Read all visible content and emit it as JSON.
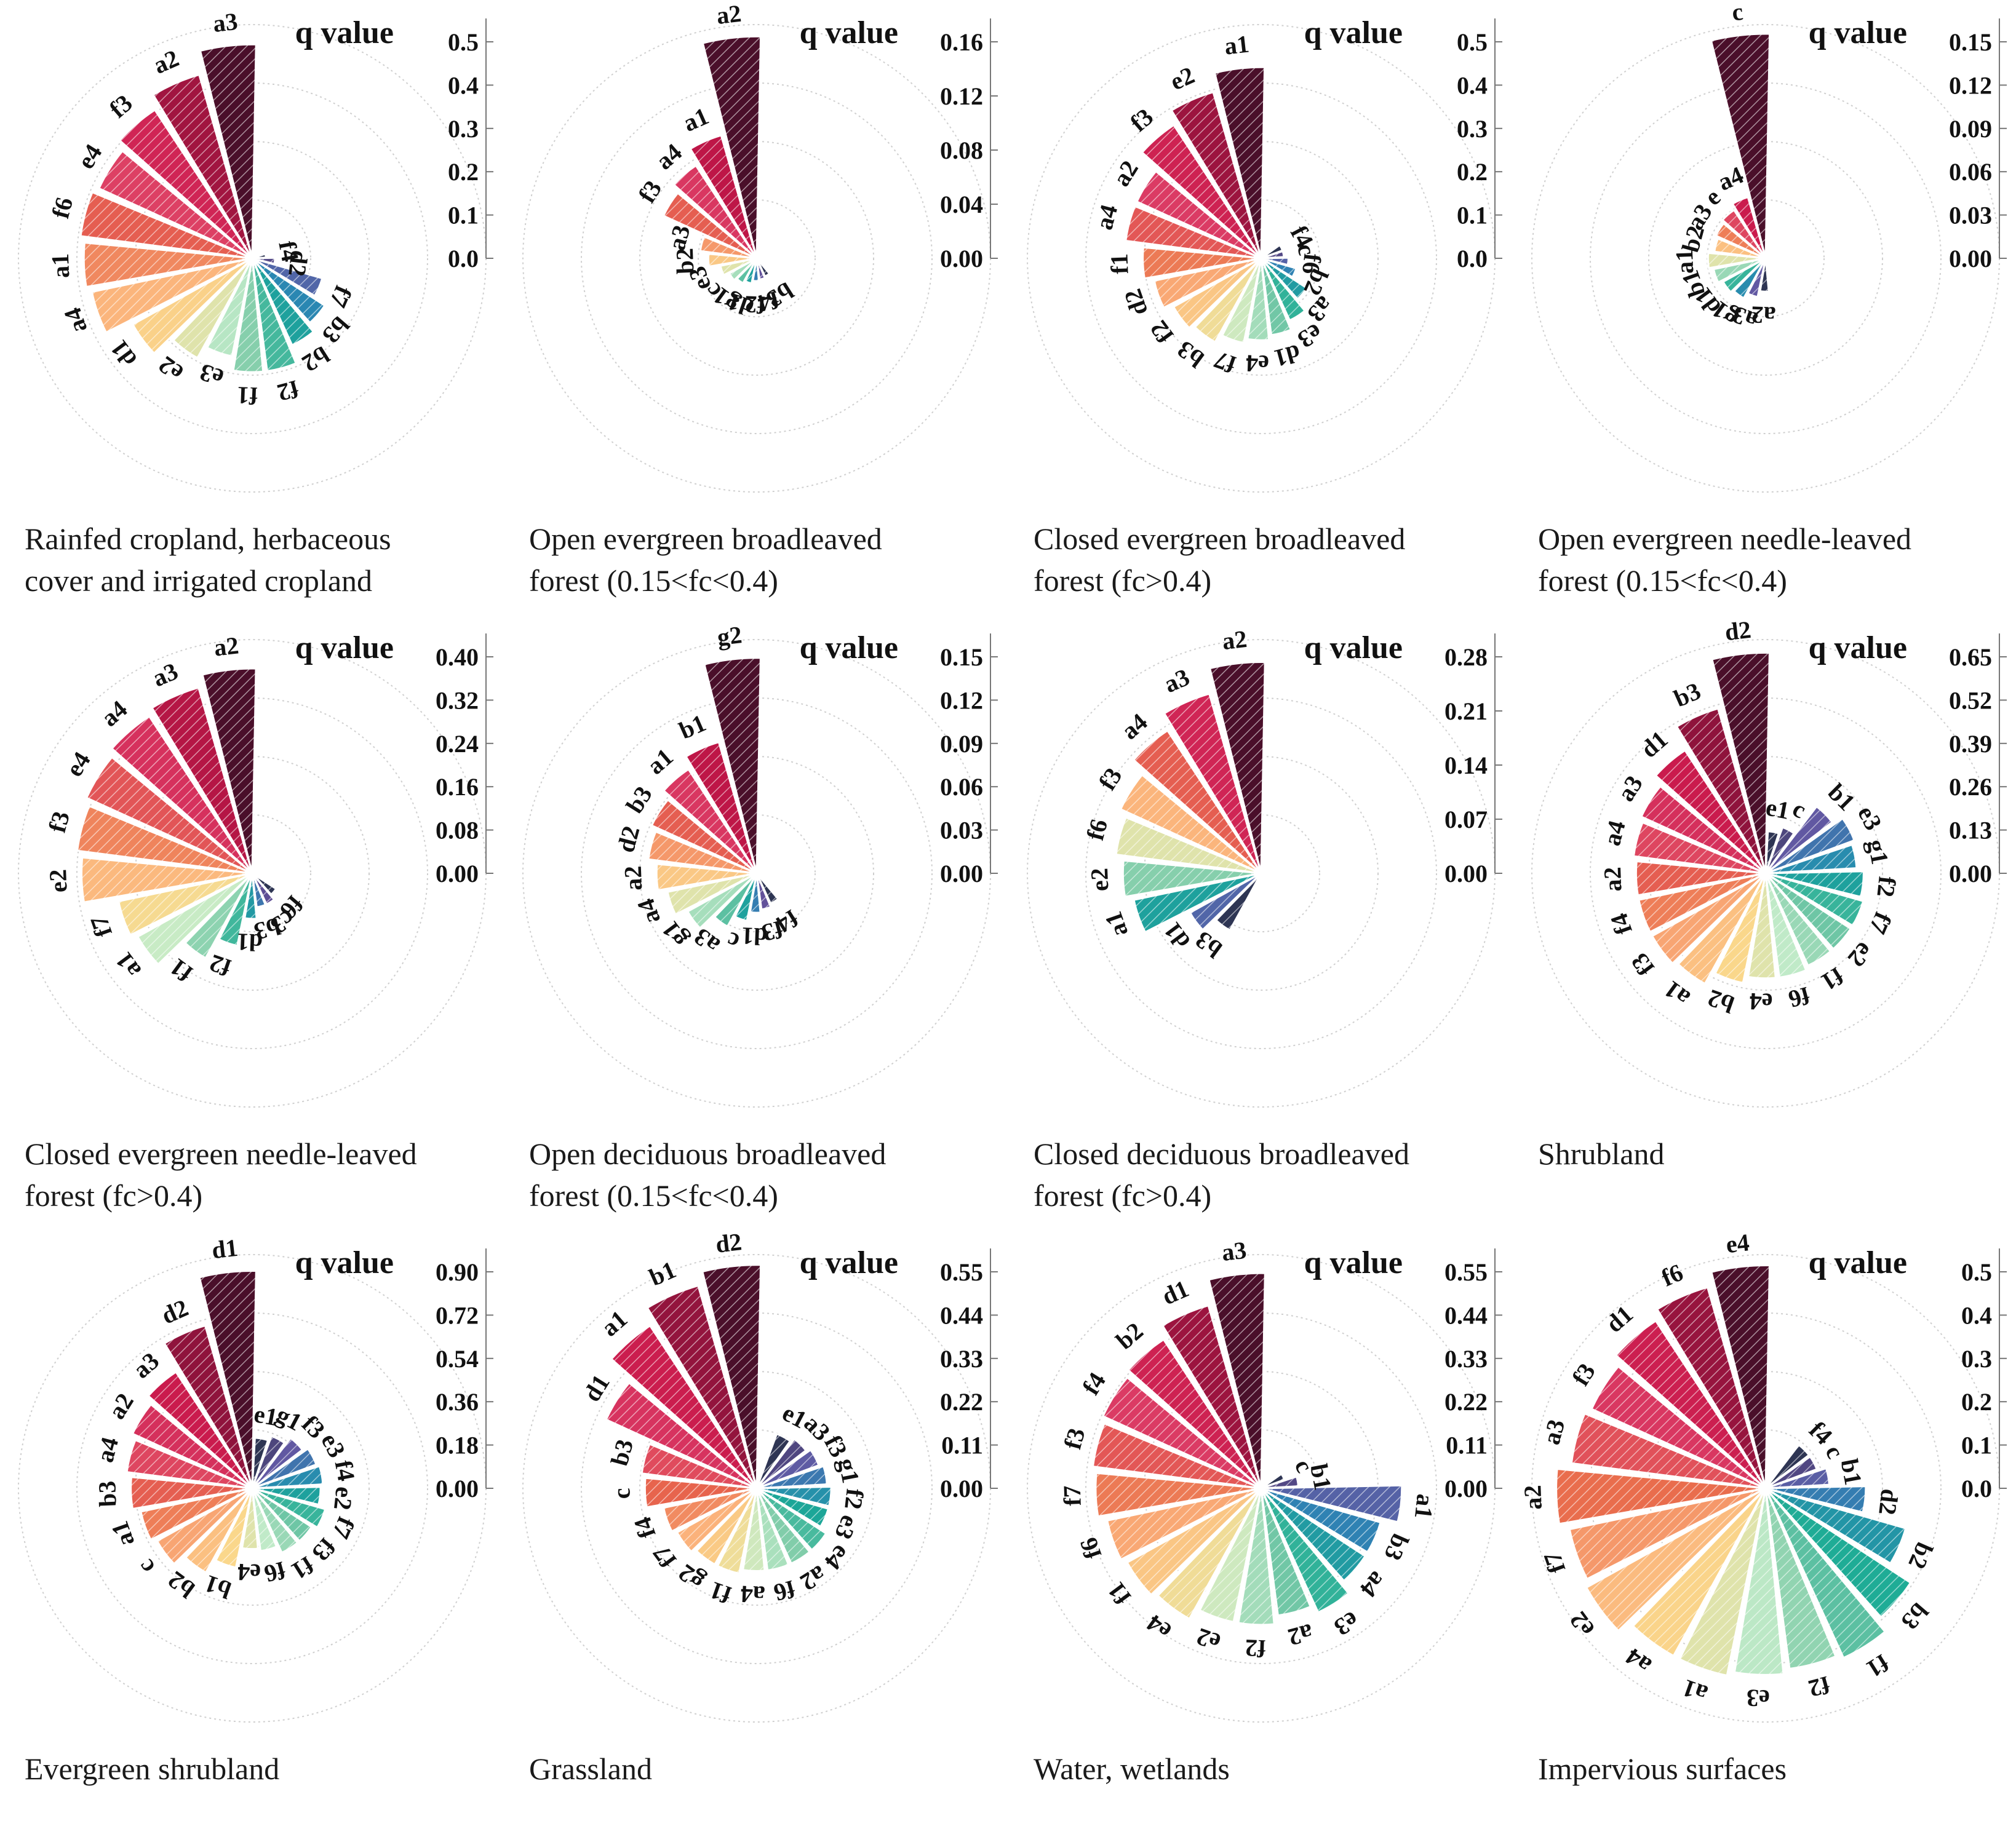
{
  "figure": {
    "axis_title": "q value",
    "palette": [
      "#4a0f2a",
      "#c8174a",
      "#dc3d66",
      "#e8694a",
      "#fbb07a",
      "#fad98c",
      "#c4ecca",
      "#7dcba8",
      "#1aaa95",
      "#2b85b4",
      "#6753a0",
      "#2e3553"
    ]
  },
  "chart_data": [
    {
      "type": "polar-bar",
      "title": "Rainfed cropland,    herbaceous\ncover and irrigated cropland",
      "yticks": [
        "0.0",
        "0.1",
        "0.2",
        "0.3",
        "0.4",
        "0.5"
      ],
      "rmax": 0.5,
      "categories": [
        "a3",
        "a2",
        "f3",
        "e4",
        "f6",
        "a1",
        "a4",
        "d1",
        "e2",
        "e3",
        "f1",
        "f2",
        "b2",
        "b3",
        "f7",
        "d2",
        "f4"
      ],
      "values": [
        0.47,
        0.42,
        0.39,
        0.37,
        0.38,
        0.37,
        0.36,
        0.3,
        0.25,
        0.22,
        0.25,
        0.25,
        0.21,
        0.19,
        0.16,
        0.05,
        0.03
      ]
    },
    {
      "type": "polar-bar",
      "title": "Open evergreen broadleaved\nforest (0.15<fc<0.4)",
      "yticks": [
        "0.00",
        "0.04",
        "0.08",
        "0.12",
        "0.16"
      ],
      "rmax": 0.16,
      "categories": [
        "a2",
        "a1",
        "a4",
        "f3",
        "a3",
        "b2",
        "e3",
        "c",
        "g1",
        "d1",
        "f2",
        "f4",
        "b3"
      ],
      "values": [
        0.156,
        0.09,
        0.078,
        0.072,
        0.04,
        0.034,
        0.026,
        0.022,
        0.02,
        0.018,
        0.016,
        0.015,
        0.014
      ]
    },
    {
      "type": "polar-bar",
      "title": "Closed evergreen broadleaved\nforest (fc>0.4)",
      "yticks": [
        "0.0",
        "0.1",
        "0.2",
        "0.3",
        "0.4",
        "0.5"
      ],
      "rmax": 0.5,
      "categories": [
        "a1",
        "e2",
        "f3",
        "a2",
        "a4",
        "f1",
        "d2",
        "f2",
        "b3",
        "f7",
        "e4",
        "d1",
        "e3",
        "a3",
        "b2",
        "f6",
        "c",
        "f4"
      ],
      "values": [
        0.42,
        0.38,
        0.35,
        0.3,
        0.3,
        0.26,
        0.24,
        0.22,
        0.21,
        0.19,
        0.18,
        0.17,
        0.15,
        0.12,
        0.08,
        0.06,
        0.05,
        0.05
      ]
    },
    {
      "type": "polar-bar",
      "title": "Open evergreen needle-leaved\nforest (0.15<fc<0.4)",
      "yticks": [
        "0.00",
        "0.03",
        "0.06",
        "0.09",
        "0.12",
        "0.15"
      ],
      "rmax": 0.15,
      "categories": [
        "c",
        "a4",
        "e",
        "a3",
        "b2",
        "a1",
        "b1",
        "d1",
        "g1",
        "a3",
        "a2"
      ],
      "values": [
        0.148,
        0.042,
        0.038,
        0.036,
        0.034,
        0.038,
        0.035,
        0.032,
        0.03,
        0.026,
        0.022
      ]
    },
    {
      "type": "polar-bar",
      "title": "Closed evergreen needle-leaved\nforest (fc>0.4)",
      "yticks": [
        "0.00",
        "0.08",
        "0.16",
        "0.24",
        "0.32",
        "0.40"
      ],
      "rmax": 0.4,
      "categories": [
        "a2",
        "a3",
        "a4",
        "e4",
        "f3",
        "e2",
        "f7",
        "a1",
        "f1",
        "f2",
        "d1",
        "b3",
        "c3",
        "f6"
      ],
      "values": [
        0.36,
        0.34,
        0.33,
        0.32,
        0.31,
        0.3,
        0.24,
        0.23,
        0.17,
        0.13,
        0.08,
        0.06,
        0.06,
        0.05
      ]
    },
    {
      "type": "polar-bar",
      "title": "Open deciduous broadleaved\nforest (0.15<fc<0.4)",
      "yticks": [
        "0.00",
        "0.03",
        "0.06",
        "0.09",
        "0.12",
        "0.15"
      ],
      "rmax": 0.15,
      "categories": [
        "g2",
        "b1",
        "a1",
        "b3",
        "d2",
        "a2",
        "a4",
        "g1",
        "a3",
        "c",
        "d1",
        "f3",
        "f4"
      ],
      "values": [
        0.142,
        0.09,
        0.082,
        0.076,
        0.072,
        0.066,
        0.06,
        0.052,
        0.04,
        0.032,
        0.026,
        0.024,
        0.022
      ]
    },
    {
      "type": "polar-bar",
      "title": "Closed deciduous broadleaved\nforest (fc>0.4)",
      "yticks": [
        "0.00",
        "0.07",
        "0.14",
        "0.21",
        "0.28"
      ],
      "rmax": 0.28,
      "categories": [
        "a2",
        "a3",
        "a4",
        "f3",
        "f6",
        "e2",
        "a1",
        "d1",
        "b3"
      ],
      "values": [
        0.26,
        0.23,
        0.21,
        0.19,
        0.18,
        0.17,
        0.16,
        0.1,
        0.08
      ]
    },
    {
      "type": "polar-bar",
      "title": "Shrubland",
      "yticks": [
        "0.00",
        "0.13",
        "0.26",
        "0.39",
        "0.52",
        "0.65"
      ],
      "rmax": 0.65,
      "categories": [
        "d2",
        "b3",
        "d1",
        "a3",
        "a4",
        "a2",
        "f4",
        "f3",
        "a1",
        "b2",
        "e4",
        "f6",
        "f1",
        "e2",
        "f7",
        "f2",
        "g1",
        "e3",
        "b1",
        "c",
        "e1"
      ],
      "values": [
        0.63,
        0.49,
        0.42,
        0.39,
        0.38,
        0.37,
        0.37,
        0.37,
        0.36,
        0.32,
        0.3,
        0.3,
        0.29,
        0.29,
        0.29,
        0.28,
        0.26,
        0.27,
        0.24,
        0.14,
        0.12
      ]
    },
    {
      "type": "polar-bar",
      "title": "Evergreen shrubland",
      "yticks": [
        "0.00",
        "0.18",
        "0.36",
        "0.54",
        "0.72",
        "0.90"
      ],
      "rmax": 0.9,
      "categories": [
        "d1",
        "d2",
        "a3",
        "a2",
        "a4",
        "b3",
        "a1",
        "c",
        "b2",
        "b1",
        "e4",
        "f6",
        "f1",
        "f3",
        "f7",
        "e2",
        "f4",
        "e3",
        "f3",
        "g1",
        "e1"
      ],
      "values": [
        0.86,
        0.67,
        0.55,
        0.52,
        0.5,
        0.48,
        0.45,
        0.43,
        0.38,
        0.32,
        0.24,
        0.25,
        0.28,
        0.28,
        0.3,
        0.27,
        0.28,
        0.27,
        0.25,
        0.22,
        0.2
      ]
    },
    {
      "type": "polar-bar",
      "title": "Grassland",
      "yticks": [
        "0.00",
        "0.11",
        "0.22",
        "0.33",
        "0.44",
        "0.55"
      ],
      "rmax": 0.55,
      "categories": [
        "d2",
        "b1",
        "a1",
        "d1",
        "b3",
        "c",
        "f4",
        "f7",
        "g2",
        "f1",
        "a4",
        "f6",
        "a2",
        "e4",
        "e3",
        "f2",
        "g1",
        "f3",
        "a3",
        "e1"
      ],
      "values": [
        0.54,
        0.51,
        0.47,
        0.4,
        0.28,
        0.27,
        0.23,
        0.22,
        0.21,
        0.21,
        0.2,
        0.2,
        0.2,
        0.2,
        0.18,
        0.18,
        0.17,
        0.16,
        0.15,
        0.14
      ]
    },
    {
      "type": "polar-bar",
      "title": "Water,  wetlands",
      "yticks": [
        "0.00",
        "0.11",
        "0.22",
        "0.33",
        "0.44",
        "0.55"
      ],
      "rmax": 0.55,
      "categories": [
        "a3",
        "d1",
        "b2",
        "f4",
        "f3",
        "f7",
        "f6",
        "f1",
        "e4",
        "e2",
        "f2",
        "a2",
        "e3",
        "a4",
        "b3",
        "a1",
        "b1",
        "c"
      ],
      "values": [
        0.52,
        0.46,
        0.43,
        0.42,
        0.41,
        0.4,
        0.38,
        0.37,
        0.36,
        0.33,
        0.33,
        0.31,
        0.33,
        0.3,
        0.3,
        0.34,
        0.09,
        0.06
      ]
    },
    {
      "type": "polar-bar",
      "title": "Impervious surfaces",
      "yticks": [
        "0.0",
        "0.1",
        "0.2",
        "0.3",
        "0.4",
        "0.5"
      ],
      "rmax": 0.5,
      "categories": [
        "e4",
        "f6",
        "d1",
        "f3",
        "a3",
        "a2",
        "f7",
        "e2",
        "a4",
        "a1",
        "e3",
        "f2",
        "f1",
        "b3",
        "b2",
        "d2",
        "b1",
        "c",
        "f4"
      ],
      "values": [
        0.49,
        0.46,
        0.44,
        0.42,
        0.43,
        0.46,
        0.44,
        0.45,
        0.42,
        0.42,
        0.41,
        0.4,
        0.41,
        0.38,
        0.32,
        0.22,
        0.14,
        0.12,
        0.12
      ]
    }
  ]
}
